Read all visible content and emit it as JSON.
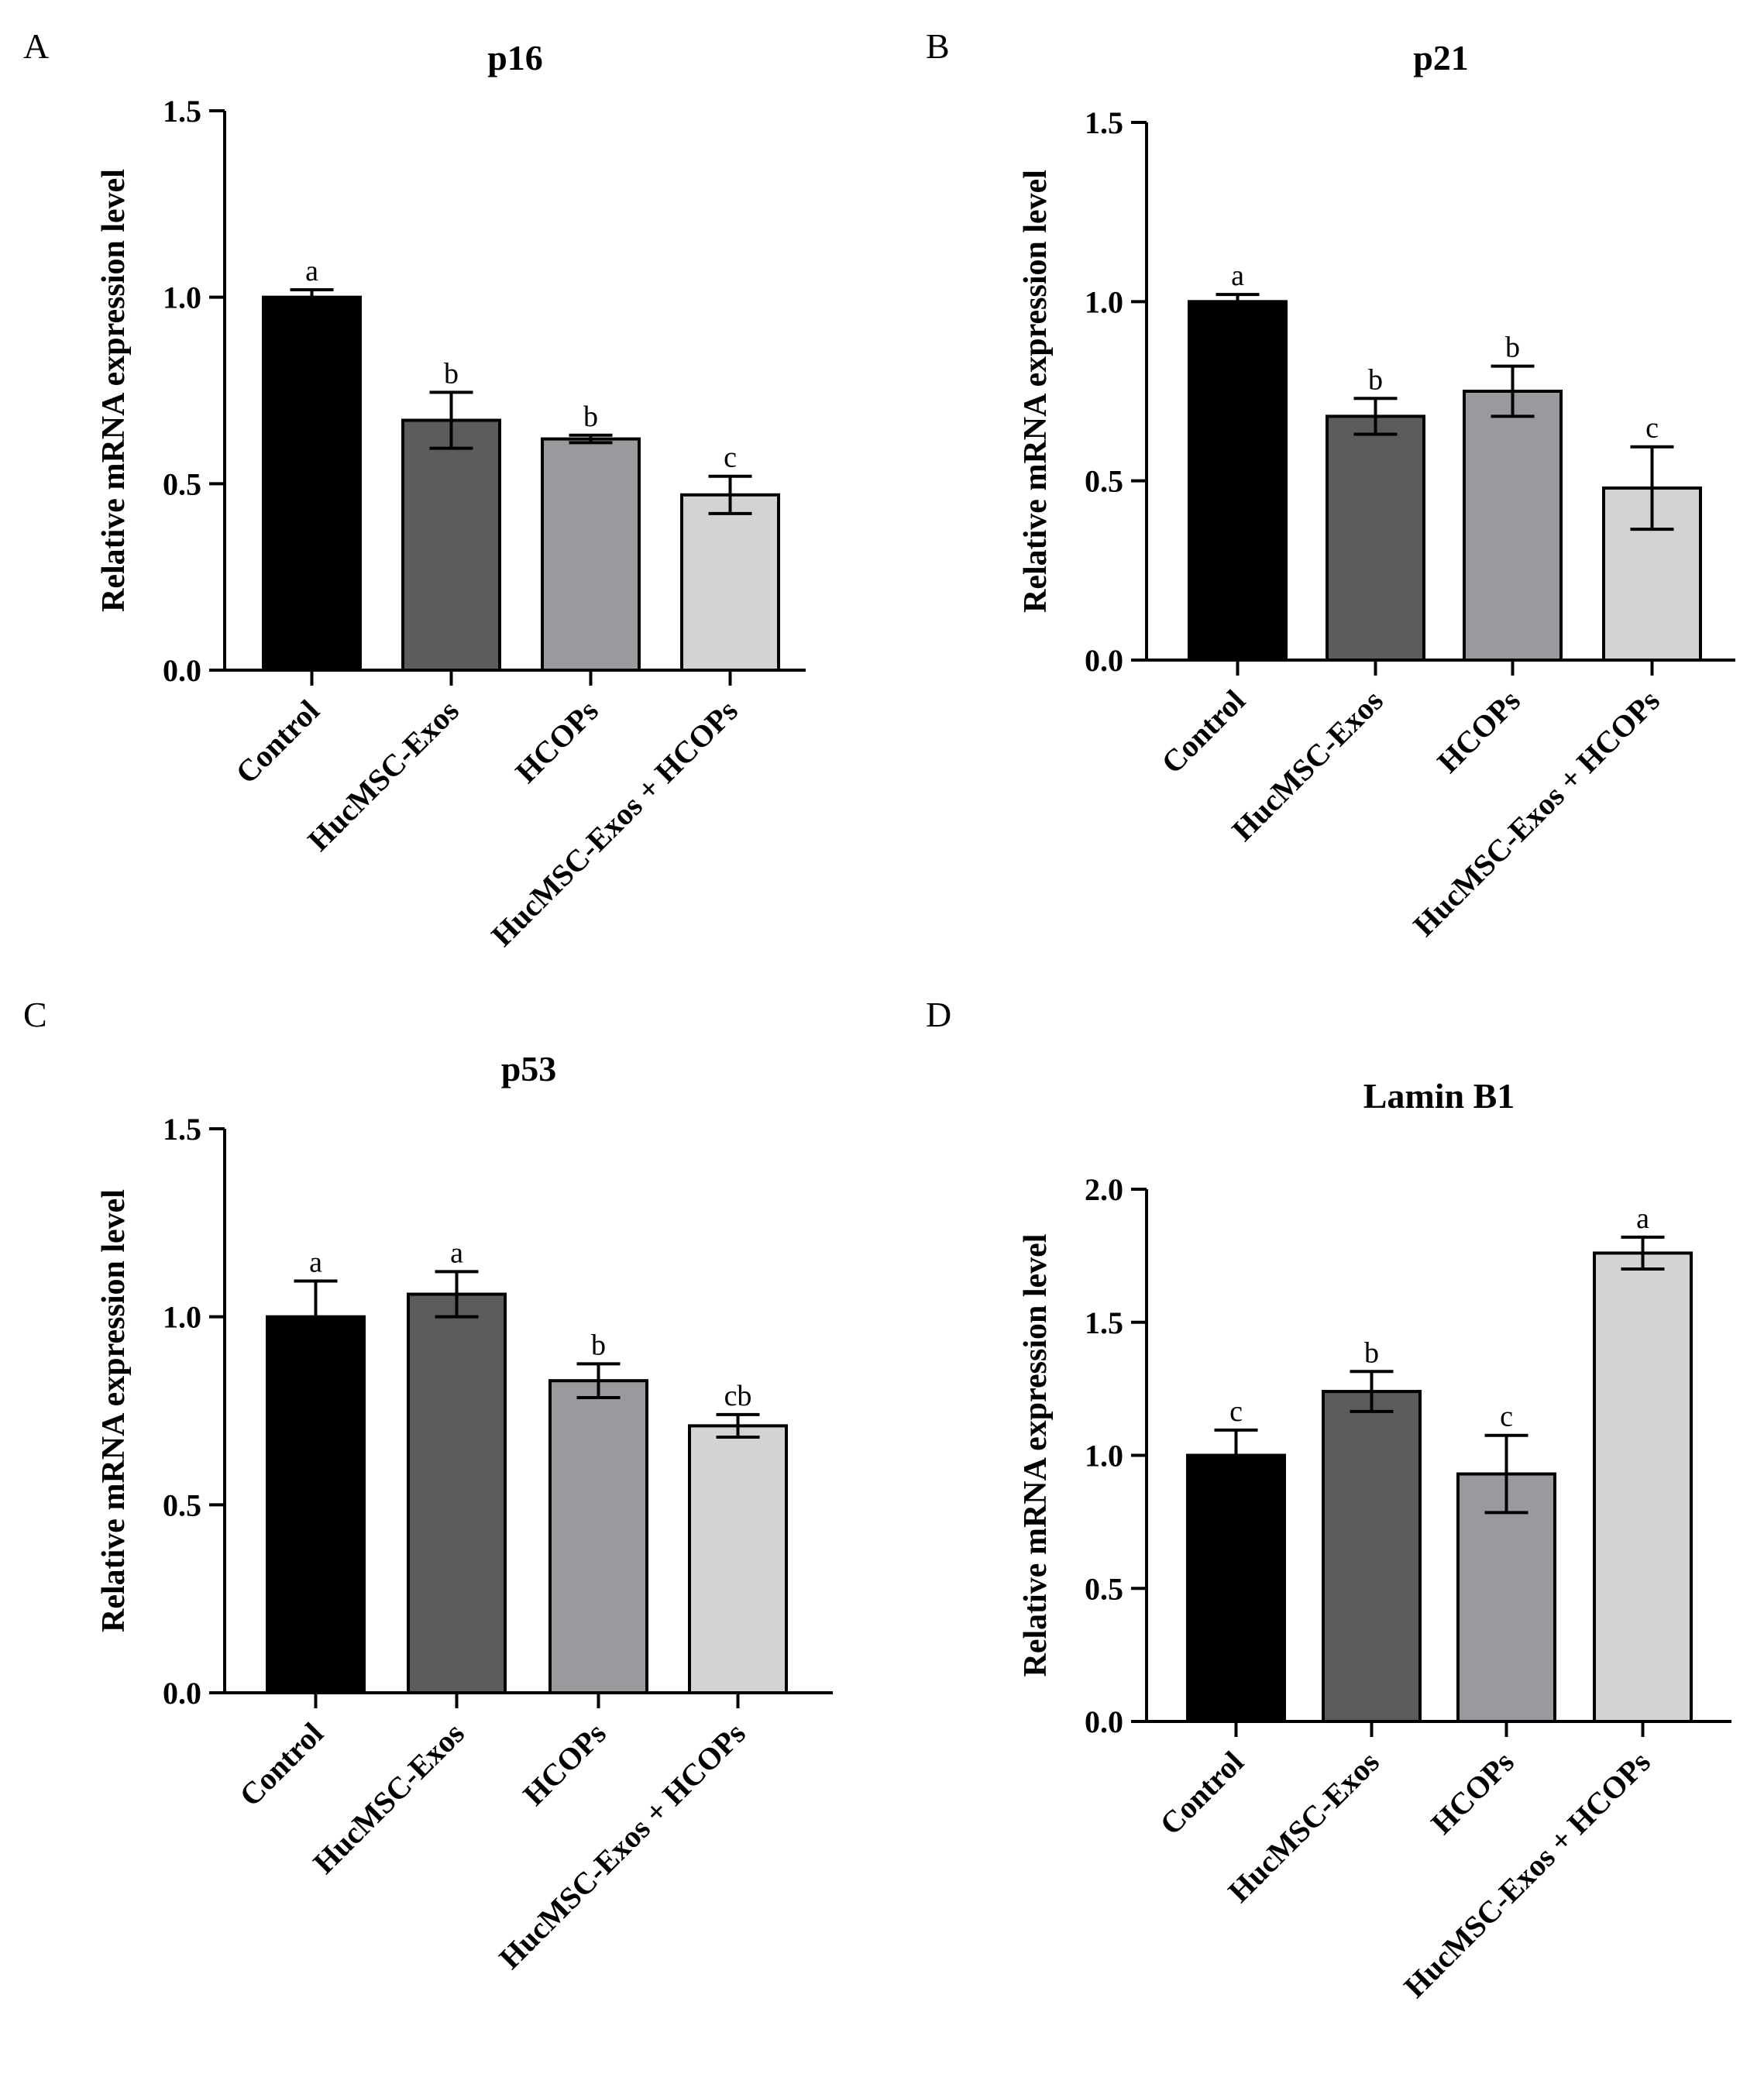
{
  "figure": {
    "colors": {
      "Control": "#000000",
      "HucMSC-Exos": "#5c5c5c",
      "HCOPs": "#9a9a9e",
      "HucMSC-Exos + HCOPs": "#d3d3d3",
      "axis": "#000000"
    }
  },
  "chart_data": [
    {
      "panel": "A",
      "type": "bar",
      "title": "p16",
      "ylabel": "Relative mRNA expression level",
      "xlabel": "",
      "categories": [
        "Control",
        "HucMSC-Exos",
        "HCOPs",
        "HucMSC-Exos + HCOPs"
      ],
      "values": [
        1.0,
        0.67,
        0.62,
        0.47
      ],
      "errors": [
        0.02,
        0.075,
        0.01,
        0.05
      ],
      "significance": [
        "a",
        "b",
        "b",
        "c"
      ],
      "ylim": [
        0,
        1.5
      ],
      "yticks": [
        "0.0",
        "0.5",
        "1.0",
        "1.5"
      ]
    },
    {
      "panel": "B",
      "type": "bar",
      "title": "p21",
      "ylabel": "Relative mRNA expression level",
      "xlabel": "",
      "categories": [
        "Control",
        "HucMSC-Exos",
        "HCOPs",
        "HucMSC-Exos + HCOPs"
      ],
      "values": [
        1.0,
        0.68,
        0.75,
        0.48
      ],
      "errors": [
        0.02,
        0.05,
        0.07,
        0.115
      ],
      "significance": [
        "a",
        "b",
        "b",
        "c"
      ],
      "ylim": [
        0,
        1.5
      ],
      "yticks": [
        "0.0",
        "0.5",
        "1.0",
        "1.5"
      ]
    },
    {
      "panel": "C",
      "type": "bar",
      "title": "p53",
      "ylabel": "Relative mRNA expression level",
      "xlabel": "",
      "categories": [
        "Control",
        "HucMSC-Exos",
        "HCOPs",
        "HucMSC-Exos + HCOPs"
      ],
      "values": [
        1.0,
        1.06,
        0.83,
        0.71
      ],
      "errors": [
        0.095,
        0.06,
        0.045,
        0.03
      ],
      "significance": [
        "a",
        "a",
        "b",
        "cb"
      ],
      "ylim": [
        0,
        1.5
      ],
      "yticks": [
        "0.0",
        "0.5",
        "1.0",
        "1.5"
      ]
    },
    {
      "panel": "D",
      "type": "bar",
      "title": "Lamin B1",
      "ylabel": "Relative mRNA expression level",
      "xlabel": "",
      "categories": [
        "Control",
        "HucMSC-Exos",
        "HCOPs",
        "HucMSC-Exos + HCOPs"
      ],
      "values": [
        1.0,
        1.24,
        0.93,
        1.76
      ],
      "errors": [
        0.095,
        0.075,
        0.145,
        0.06
      ],
      "significance": [
        "c",
        "b",
        "c",
        "a"
      ],
      "ylim": [
        0,
        2.0
      ],
      "yticks": [
        "0.0",
        "0.5",
        "1.0",
        "1.5",
        "2.0"
      ]
    }
  ]
}
